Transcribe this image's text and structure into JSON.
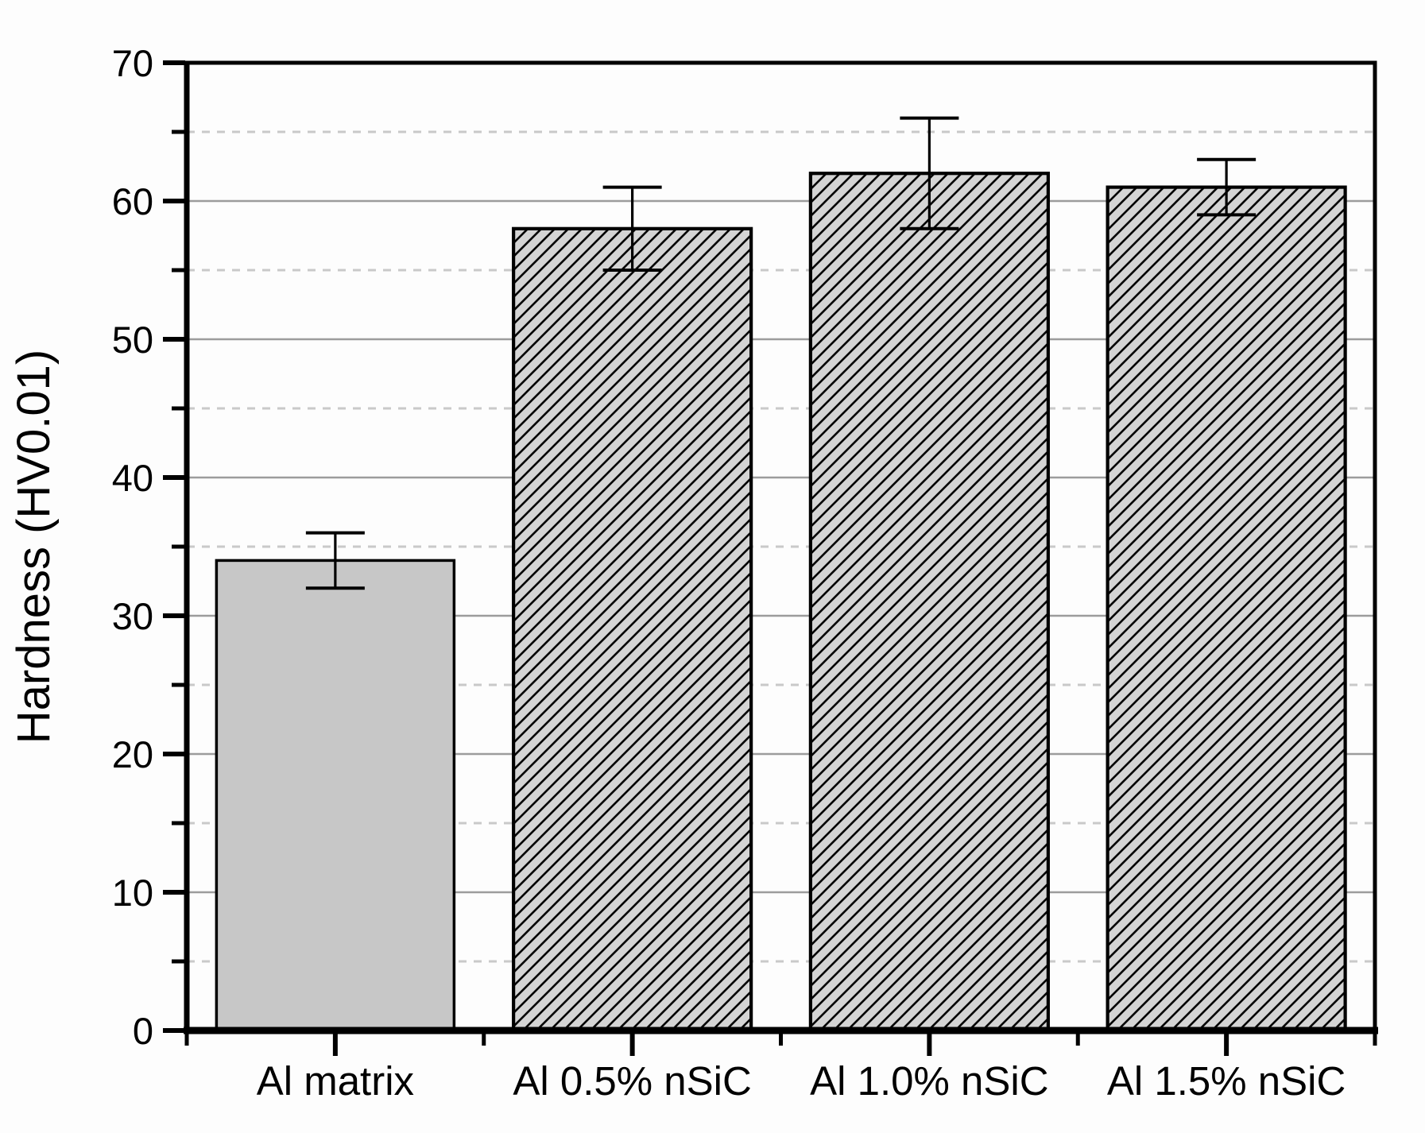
{
  "chart_data": {
    "type": "bar",
    "title": "",
    "categories": [
      "Al matrix",
      "Al 0.5% nSiC",
      "Al 1.0% nSiC",
      "Al 1.5% nSiC"
    ],
    "values": [
      34,
      58,
      62,
      61
    ],
    "error_plus": [
      2,
      3,
      4,
      2
    ],
    "error_minus": [
      2,
      3,
      4,
      2
    ],
    "xlabel": "",
    "ylabel": "Hardness (HV0.01)",
    "ylim": [
      0,
      70
    ],
    "y_major_step": 10,
    "y_minor_step": 5,
    "y_tick_labels": [
      "0",
      "10",
      "20",
      "30",
      "40",
      "50",
      "60",
      "70"
    ],
    "grid": "horizontal: solid light lines at major ticks, dashed lighter lines at minor ticks",
    "legend_position": "none",
    "bar_styles": [
      "solid",
      "hatched",
      "hatched",
      "hatched"
    ],
    "hatch_direction": "forward-slash-45deg"
  },
  "colors": {
    "background": "#fdfdfd",
    "axis_and_text": "#000000",
    "bar_solid_fill": "#c7c7c7",
    "bar_hatch_background": "#d4d4d4",
    "bar_hatch_line": "#000000",
    "bar_border": "#000000",
    "grid_major": "#9c9c9c",
    "grid_minor": "#c9c9c9",
    "error_bar": "#000000"
  }
}
